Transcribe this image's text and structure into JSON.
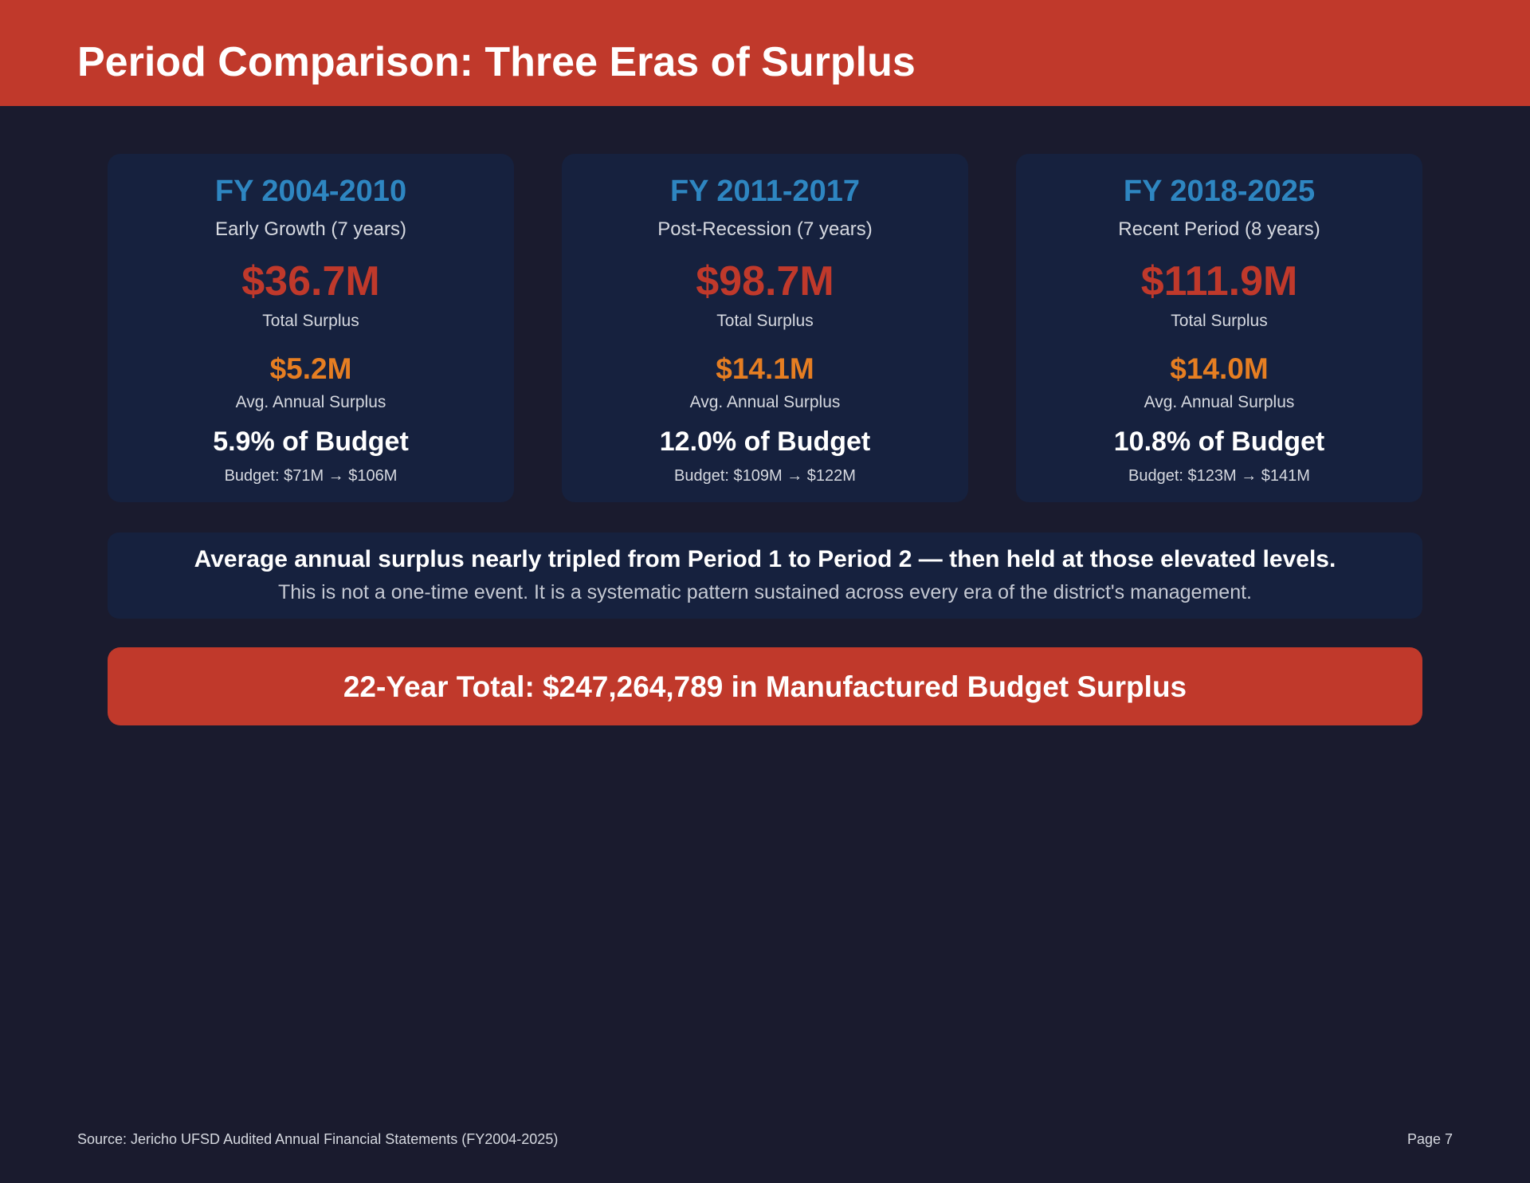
{
  "header": {
    "title": "Period Comparison: Three Eras of Surplus"
  },
  "colors": {
    "accent_red": "#c0392b",
    "accent_blue": "#2e86c1",
    "accent_orange": "#e67e22",
    "background": "#1a1b2e",
    "card_background": "#16213e"
  },
  "periods": [
    {
      "title": "FY 2004-2010",
      "era": "Early Growth (7 years)",
      "total": "$36.7M",
      "total_label": "Total Surplus",
      "avg": "$5.2M",
      "avg_label": "Avg. Annual Surplus",
      "pct": "5.9% of Budget",
      "budget": "Budget: $71M → $106M"
    },
    {
      "title": "FY 2011-2017",
      "era": "Post-Recession (7 years)",
      "total": "$98.7M",
      "total_label": "Total Surplus",
      "avg": "$14.1M",
      "avg_label": "Avg. Annual Surplus",
      "pct": "12.0% of Budget",
      "budget": "Budget: $109M → $122M"
    },
    {
      "title": "FY 2018-2025",
      "era": "Recent Period (8 years)",
      "total": "$111.9M",
      "total_label": "Total Surplus",
      "avg": "$14.0M",
      "avg_label": "Avg. Annual Surplus",
      "pct": "10.8% of Budget",
      "budget": "Budget: $123M → $141M"
    }
  ],
  "insight": {
    "main": "Average annual surplus nearly tripled from Period 1 to Period 2 — then held at those elevated levels.",
    "sub": "This is not a one-time event. It is a systematic pattern sustained across every era of the district's management."
  },
  "total_banner": {
    "text": "22-Year Total: $247,264,789 in Manufactured Budget Surplus"
  },
  "footer": {
    "source": "Source: Jericho UFSD Audited Annual Financial Statements (FY2004-2025)",
    "page": "Page 7"
  }
}
